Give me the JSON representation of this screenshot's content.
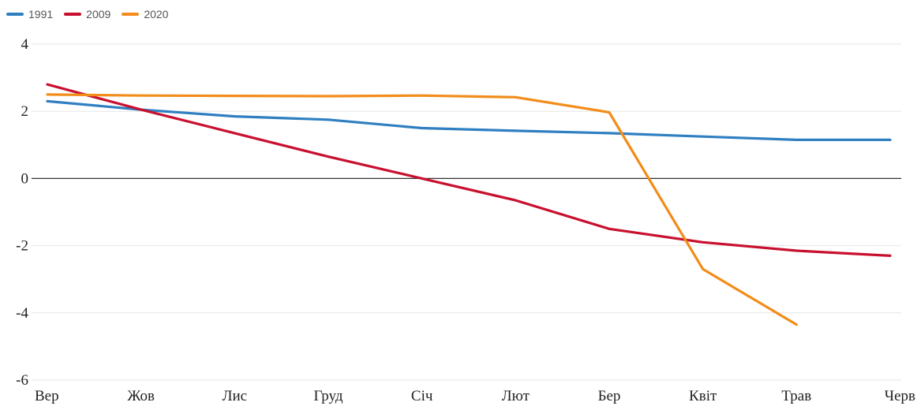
{
  "chart_data": {
    "type": "line",
    "categories": [
      "Вер",
      "Жов",
      "Лис",
      "Груд",
      "Січ",
      "Лют",
      "Бер",
      "Квіт",
      "Трав",
      "Черв"
    ],
    "ylim": [
      -6,
      4
    ],
    "yticks": [
      4,
      2,
      0,
      -2,
      -4,
      -6
    ],
    "grid": true,
    "legend_position": "top-left",
    "series": [
      {
        "name": "1991",
        "color": "#2f7fc1",
        "values": [
          2.3,
          2.05,
          1.85,
          1.75,
          1.5,
          1.42,
          1.35,
          1.25,
          1.15,
          1.15
        ]
      },
      {
        "name": "2009",
        "color": "#c8102e",
        "values": [
          2.8,
          2.05,
          1.35,
          0.65,
          0.0,
          -0.65,
          -1.5,
          -1.9,
          -2.15,
          -2.3
        ]
      },
      {
        "name": "2020",
        "color": "#f28c1a",
        "values": [
          2.5,
          2.47,
          2.46,
          2.45,
          2.47,
          2.42,
          1.97,
          -2.7,
          -4.35,
          null
        ]
      }
    ]
  }
}
